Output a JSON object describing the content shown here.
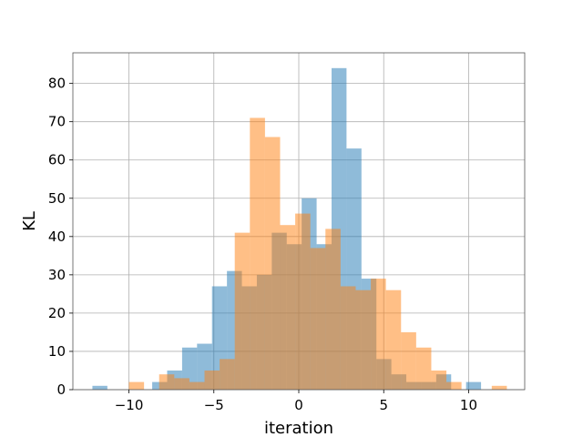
{
  "chart_data": {
    "type": "histogram",
    "title": "",
    "xlabel": "iteration",
    "ylabel": "KL",
    "xlim": [
      -13.3,
      13.3
    ],
    "ylim": [
      0,
      88
    ],
    "xticks": [
      -10,
      -5,
      0,
      5,
      10
    ],
    "xtick_labels": [
      "−10",
      "−5",
      "0",
      "5",
      "10"
    ],
    "yticks": [
      0,
      10,
      20,
      30,
      40,
      50,
      60,
      70,
      80
    ],
    "ytick_labels": [
      "0",
      "10",
      "20",
      "30",
      "40",
      "50",
      "60",
      "70",
      "80"
    ],
    "grid": true,
    "legend": "none",
    "series": [
      {
        "color": "#1f77b4",
        "opacity": 0.5,
        "bin_edges": [
          -12.15,
          -11.27,
          -10.39,
          -9.51,
          -8.63,
          -7.75,
          -6.87,
          -5.99,
          -5.11,
          -4.23,
          -3.35,
          -2.47,
          -1.59,
          -0.71,
          0.17,
          1.05,
          1.93,
          2.81,
          3.69,
          4.57,
          5.45,
          6.33,
          7.21,
          8.09,
          8.97,
          9.85,
          10.73
        ],
        "counts": [
          1,
          0,
          0,
          0,
          2,
          5,
          11,
          12,
          27,
          31,
          27,
          30,
          41,
          38,
          50,
          38,
          84,
          63,
          29,
          8,
          4,
          2,
          2,
          4,
          0,
          2
        ]
      },
      {
        "color": "#ff7f0e",
        "opacity": 0.5,
        "bin_edges": [
          -10.0,
          -9.11,
          -8.22,
          -7.33,
          -6.44,
          -5.55,
          -4.66,
          -3.77,
          -2.88,
          -1.99,
          -1.1,
          -0.21,
          0.68,
          1.57,
          2.46,
          3.35,
          4.24,
          5.13,
          6.02,
          6.91,
          7.8,
          8.69,
          9.58,
          10.47,
          11.36,
          12.25
        ],
        "counts": [
          2,
          0,
          4,
          3,
          2,
          5,
          8,
          41,
          71,
          66,
          43,
          46,
          37,
          42,
          27,
          26,
          29,
          26,
          15,
          11,
          5,
          2,
          0,
          0,
          1
        ]
      }
    ]
  }
}
